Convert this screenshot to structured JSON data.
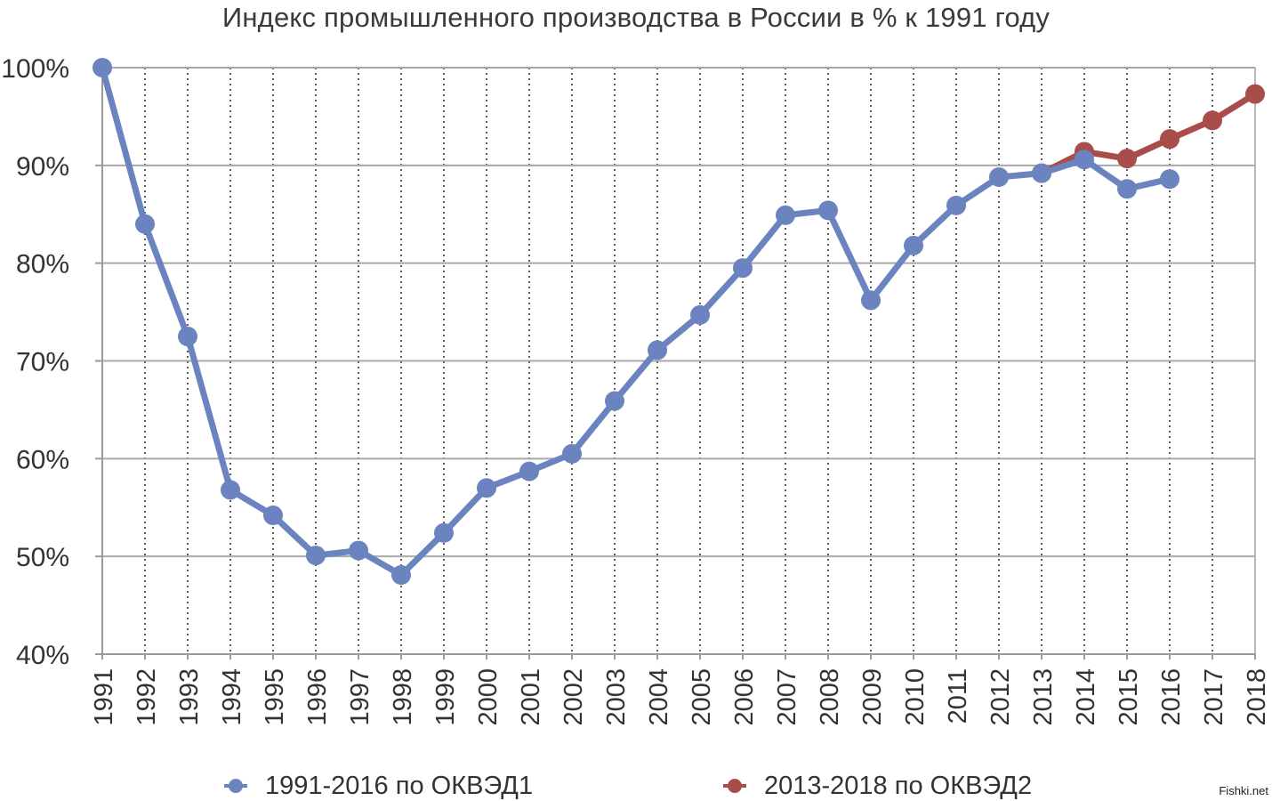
{
  "chart_data": {
    "type": "line",
    "title": "Индекс промышленного производства в России в % к 1991 году",
    "xlabel": "",
    "ylabel": "",
    "ylim": [
      40,
      100
    ],
    "yticks": [
      "40%",
      "50%",
      "60%",
      "70%",
      "80%",
      "90%",
      "100%"
    ],
    "ytick_values": [
      40,
      50,
      60,
      70,
      80,
      90,
      100
    ],
    "x": [
      "1991",
      "1992",
      "1993",
      "1994",
      "1995",
      "1996",
      "1997",
      "1998",
      "1999",
      "2000",
      "2001",
      "2002",
      "2003",
      "2004",
      "2005",
      "2006",
      "2007",
      "2008",
      "2009",
      "2010",
      "2011",
      "2012",
      "2013",
      "2014",
      "2015",
      "2016",
      "2017",
      "2018"
    ],
    "grid": "horizontal solid, vertical dotted",
    "legend_position": "bottom",
    "series": [
      {
        "name": "1991-2016 по ОКВЭД1",
        "color": "#6b84bf",
        "x": [
          "1991",
          "1992",
          "1993",
          "1994",
          "1995",
          "1996",
          "1997",
          "1998",
          "1999",
          "2000",
          "2001",
          "2002",
          "2003",
          "2004",
          "2005",
          "2006",
          "2007",
          "2008",
          "2009",
          "2010",
          "2011",
          "2012",
          "2013",
          "2014",
          "2015",
          "2016"
        ],
        "values": [
          100,
          84.0,
          72.5,
          56.8,
          54.2,
          50.1,
          50.6,
          48.1,
          52.4,
          57.0,
          58.7,
          60.5,
          65.9,
          71.1,
          74.7,
          79.5,
          84.9,
          85.4,
          76.2,
          81.8,
          85.9,
          88.8,
          89.2,
          90.6,
          87.6,
          88.6
        ]
      },
      {
        "name": "2013-2018 по ОКВЭД2",
        "color": "#a94d4a",
        "x": [
          "2013",
          "2014",
          "2015",
          "2016",
          "2017",
          "2018"
        ],
        "values": [
          89.2,
          91.4,
          90.7,
          92.7,
          94.6,
          97.3
        ]
      }
    ]
  },
  "watermark": "Fishki.net"
}
